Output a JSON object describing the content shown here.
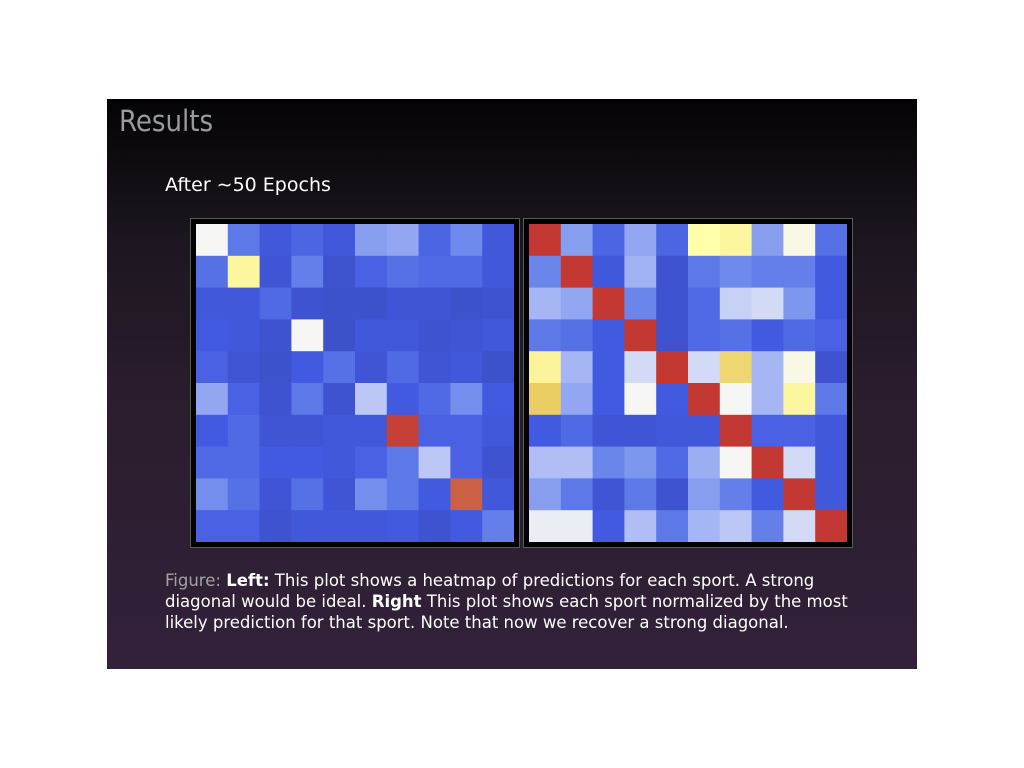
{
  "slide": {
    "title": "Results",
    "subtitle": "After ∼50 Epochs"
  },
  "caption": {
    "figure_label": "Figure:",
    "left_label": "Left:",
    "left_text": " This plot shows a heatmap of predictions for each sport. A strong diagonal would be ideal. ",
    "right_label": "Right",
    "right_text": " This plot shows each sport normalized by the most likely prediction for that sport. Note that now we recover a strong diagonal."
  },
  "chart_data": [
    {
      "type": "heatmap",
      "name": "left",
      "colormap": "coolwarm",
      "colors": {
        "low": "#3b4cc0",
        "mid": "#f7f7f7",
        "high": "#c0282b"
      },
      "values": [
        [
          0.5,
          0.2,
          0.1,
          0.15,
          0.1,
          0.3,
          0.32,
          0.15,
          0.25,
          0.1
        ],
        [
          0.18,
          0.62,
          0.08,
          0.22,
          0.05,
          0.14,
          0.18,
          0.16,
          0.16,
          0.1
        ],
        [
          0.1,
          0.1,
          0.16,
          0.06,
          0.04,
          0.04,
          0.08,
          0.08,
          0.04,
          0.06
        ],
        [
          0.12,
          0.1,
          0.06,
          0.5,
          0.04,
          0.1,
          0.1,
          0.06,
          0.08,
          0.1
        ],
        [
          0.14,
          0.08,
          0.04,
          0.12,
          0.18,
          0.08,
          0.16,
          0.08,
          0.1,
          0.04
        ],
        [
          0.32,
          0.14,
          0.06,
          0.2,
          0.06,
          0.4,
          0.12,
          0.16,
          0.26,
          0.12
        ],
        [
          0.12,
          0.16,
          0.08,
          0.08,
          0.1,
          0.1,
          0.94,
          0.14,
          0.14,
          0.1
        ],
        [
          0.16,
          0.16,
          0.12,
          0.12,
          0.1,
          0.14,
          0.2,
          0.4,
          0.14,
          0.06
        ],
        [
          0.26,
          0.18,
          0.08,
          0.18,
          0.08,
          0.26,
          0.2,
          0.12,
          0.86,
          0.1
        ],
        [
          0.14,
          0.14,
          0.06,
          0.1,
          0.1,
          0.1,
          0.12,
          0.06,
          0.12,
          0.22
        ]
      ]
    },
    {
      "type": "heatmap",
      "name": "right",
      "colormap": "coolwarm",
      "colors": {
        "low": "#3b4cc0",
        "mid": "#f7f7f7",
        "high": "#c0282b"
      },
      "values": [
        [
          0.96,
          0.3,
          0.15,
          0.32,
          0.15,
          0.6,
          0.62,
          0.3,
          0.52,
          0.18
        ],
        [
          0.24,
          0.96,
          0.1,
          0.35,
          0.06,
          0.2,
          0.25,
          0.22,
          0.22,
          0.12
        ],
        [
          0.36,
          0.32,
          0.96,
          0.24,
          0.06,
          0.16,
          0.42,
          0.44,
          0.28,
          0.12
        ],
        [
          0.2,
          0.18,
          0.12,
          0.96,
          0.06,
          0.16,
          0.18,
          0.12,
          0.16,
          0.14
        ],
        [
          0.63,
          0.36,
          0.12,
          0.44,
          0.96,
          0.44,
          0.7,
          0.36,
          0.52,
          0.06
        ],
        [
          0.72,
          0.32,
          0.12,
          0.5,
          0.12,
          0.96,
          0.5,
          0.36,
          0.62,
          0.2
        ],
        [
          0.12,
          0.16,
          0.08,
          0.08,
          0.1,
          0.1,
          0.96,
          0.14,
          0.14,
          0.1
        ],
        [
          0.38,
          0.38,
          0.24,
          0.28,
          0.16,
          0.34,
          0.5,
          0.96,
          0.44,
          0.1
        ],
        [
          0.3,
          0.2,
          0.08,
          0.2,
          0.06,
          0.3,
          0.22,
          0.12,
          0.96,
          0.1
        ],
        [
          0.48,
          0.48,
          0.12,
          0.38,
          0.2,
          0.36,
          0.4,
          0.22,
          0.44,
          0.96
        ]
      ]
    }
  ]
}
